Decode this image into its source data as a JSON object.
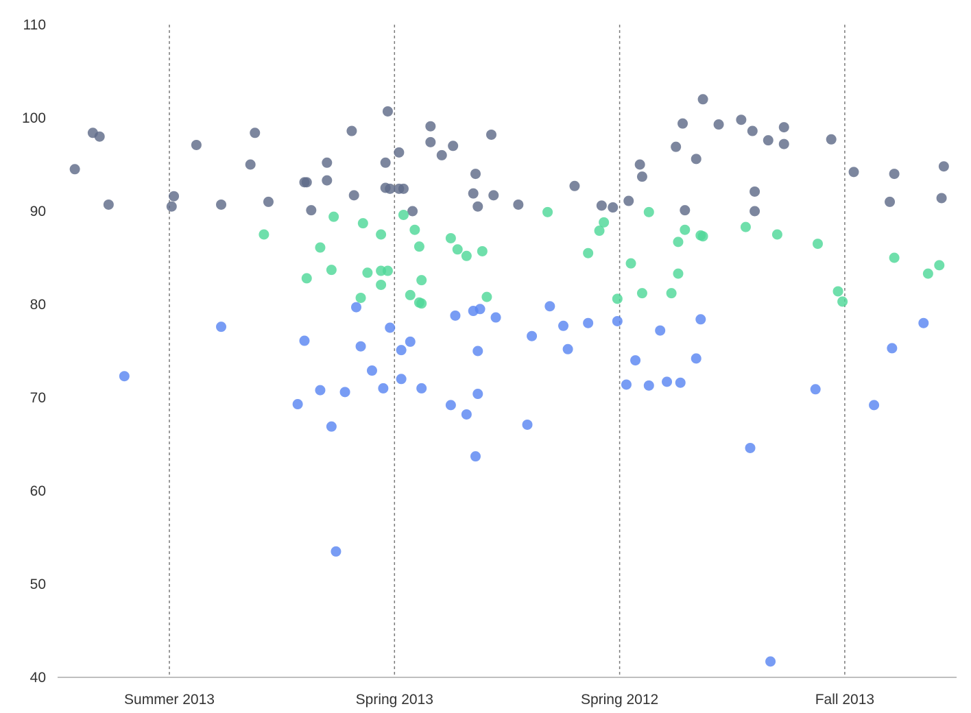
{
  "chart_data": {
    "type": "scatter",
    "title": "",
    "xlabel": "",
    "ylabel": "",
    "ylim": [
      40,
      110
    ],
    "yticks": [
      40,
      50,
      60,
      70,
      80,
      90,
      100,
      110
    ],
    "categories": [
      "Summer 2013",
      "Spring 2013",
      "Spring 2012",
      "Fall 2013"
    ],
    "grid": "vertical dashed lines at category centers",
    "legend": "none",
    "colors": [
      "#5f6b89",
      "#5a86f2",
      "#4fd899"
    ],
    "series": [
      {
        "color": "#5f6b89",
        "points": [
          {
            "category": "Summer 2013",
            "offset": -0.42,
            "y": 94.5
          },
          {
            "category": "Summer 2013",
            "offset": -0.34,
            "y": 98.4
          },
          {
            "category": "Summer 2013",
            "offset": -0.31,
            "y": 98.0
          },
          {
            "category": "Summer 2013",
            "offset": -0.27,
            "y": 90.7
          },
          {
            "category": "Summer 2013",
            "offset": 0.01,
            "y": 90.5
          },
          {
            "category": "Summer 2013",
            "offset": 0.02,
            "y": 91.6
          },
          {
            "category": "Summer 2013",
            "offset": 0.12,
            "y": 97.1
          },
          {
            "category": "Summer 2013",
            "offset": 0.23,
            "y": 90.7
          },
          {
            "category": "Summer 2013",
            "offset": 0.36,
            "y": 95.0
          },
          {
            "category": "Summer 2013",
            "offset": 0.38,
            "y": 98.4
          },
          {
            "category": "Summer 2013",
            "offset": 0.44,
            "y": 91.0
          },
          {
            "category": "Spring 2013",
            "offset": -0.4,
            "y": 93.1
          },
          {
            "category": "Spring 2013",
            "offset": -0.39,
            "y": 93.1
          },
          {
            "category": "Spring 2013",
            "offset": -0.37,
            "y": 90.1
          },
          {
            "category": "Spring 2013",
            "offset": -0.3,
            "y": 95.2
          },
          {
            "category": "Spring 2013",
            "offset": -0.3,
            "y": 93.3
          },
          {
            "category": "Spring 2013",
            "offset": -0.19,
            "y": 98.6
          },
          {
            "category": "Spring 2013",
            "offset": -0.18,
            "y": 91.7
          },
          {
            "category": "Spring 2013",
            "offset": -0.04,
            "y": 95.2
          },
          {
            "category": "Spring 2013",
            "offset": -0.04,
            "y": 92.5
          },
          {
            "category": "Spring 2013",
            "offset": -0.03,
            "y": 100.7
          },
          {
            "category": "Spring 2013",
            "offset": -0.02,
            "y": 92.4
          },
          {
            "category": "Spring 2013",
            "offset": 0.02,
            "y": 96.3
          },
          {
            "category": "Spring 2013",
            "offset": 0.02,
            "y": 92.4
          },
          {
            "category": "Spring 2013",
            "offset": 0.04,
            "y": 92.4
          },
          {
            "category": "Spring 2013",
            "offset": 0.08,
            "y": 90.0
          },
          {
            "category": "Spring 2013",
            "offset": 0.16,
            "y": 99.1
          },
          {
            "category": "Spring 2013",
            "offset": 0.16,
            "y": 97.4
          },
          {
            "category": "Spring 2013",
            "offset": 0.21,
            "y": 96.0
          },
          {
            "category": "Spring 2013",
            "offset": 0.26,
            "y": 97.0
          },
          {
            "category": "Spring 2013",
            "offset": 0.35,
            "y": 91.9
          },
          {
            "category": "Spring 2013",
            "offset": 0.36,
            "y": 94.0
          },
          {
            "category": "Spring 2013",
            "offset": 0.37,
            "y": 90.5
          },
          {
            "category": "Spring 2013",
            "offset": 0.43,
            "y": 98.2
          },
          {
            "category": "Spring 2013",
            "offset": 0.44,
            "y": 91.7
          },
          {
            "category": "Spring 2012",
            "offset": -0.45,
            "y": 90.7
          },
          {
            "category": "Spring 2012",
            "offset": -0.2,
            "y": 92.7
          },
          {
            "category": "Spring 2012",
            "offset": -0.08,
            "y": 90.6
          },
          {
            "category": "Spring 2012",
            "offset": -0.03,
            "y": 90.4
          },
          {
            "category": "Spring 2012",
            "offset": 0.04,
            "y": 91.1
          },
          {
            "category": "Spring 2012",
            "offset": 0.09,
            "y": 95.0
          },
          {
            "category": "Spring 2012",
            "offset": 0.1,
            "y": 93.7
          },
          {
            "category": "Spring 2012",
            "offset": 0.25,
            "y": 96.9
          },
          {
            "category": "Spring 2012",
            "offset": 0.28,
            "y": 99.4
          },
          {
            "category": "Spring 2012",
            "offset": 0.29,
            "y": 90.1
          },
          {
            "category": "Spring 2012",
            "offset": 0.34,
            "y": 95.6
          },
          {
            "category": "Spring 2012",
            "offset": 0.37,
            "y": 102.0
          },
          {
            "category": "Spring 2012",
            "offset": 0.44,
            "y": 99.3
          },
          {
            "category": "Fall 2013",
            "offset": -0.46,
            "y": 99.8
          },
          {
            "category": "Fall 2013",
            "offset": -0.41,
            "y": 98.6
          },
          {
            "category": "Fall 2013",
            "offset": -0.4,
            "y": 92.1
          },
          {
            "category": "Fall 2013",
            "offset": -0.4,
            "y": 90.0
          },
          {
            "category": "Fall 2013",
            "offset": -0.34,
            "y": 97.6
          },
          {
            "category": "Fall 2013",
            "offset": -0.27,
            "y": 99.0
          },
          {
            "category": "Fall 2013",
            "offset": -0.27,
            "y": 97.2
          },
          {
            "category": "Fall 2013",
            "offset": -0.06,
            "y": 97.7
          },
          {
            "category": "Fall 2013",
            "offset": 0.04,
            "y": 94.2
          },
          {
            "category": "Fall 2013",
            "offset": 0.2,
            "y": 91.0
          },
          {
            "category": "Fall 2013",
            "offset": 0.22,
            "y": 94.0
          },
          {
            "category": "Fall 2013",
            "offset": 0.43,
            "y": 91.4
          },
          {
            "category": "Fall 2013",
            "offset": 0.44,
            "y": 94.8
          }
        ]
      },
      {
        "color": "#5a86f2",
        "points": [
          {
            "category": "Summer 2013",
            "offset": -0.2,
            "y": 72.3
          },
          {
            "category": "Summer 2013",
            "offset": 0.23,
            "y": 77.6
          },
          {
            "category": "Spring 2013",
            "offset": -0.43,
            "y": 69.3
          },
          {
            "category": "Spring 2013",
            "offset": -0.4,
            "y": 76.1
          },
          {
            "category": "Spring 2013",
            "offset": -0.33,
            "y": 70.8
          },
          {
            "category": "Spring 2013",
            "offset": -0.28,
            "y": 66.9
          },
          {
            "category": "Spring 2013",
            "offset": -0.26,
            "y": 53.5
          },
          {
            "category": "Spring 2013",
            "offset": -0.22,
            "y": 70.6
          },
          {
            "category": "Spring 2013",
            "offset": -0.17,
            "y": 79.7
          },
          {
            "category": "Spring 2013",
            "offset": -0.15,
            "y": 75.5
          },
          {
            "category": "Spring 2013",
            "offset": -0.1,
            "y": 72.9
          },
          {
            "category": "Spring 2013",
            "offset": -0.05,
            "y": 71.0
          },
          {
            "category": "Spring 2013",
            "offset": -0.02,
            "y": 77.5
          },
          {
            "category": "Spring 2013",
            "offset": 0.03,
            "y": 75.1
          },
          {
            "category": "Spring 2013",
            "offset": 0.03,
            "y": 72.0
          },
          {
            "category": "Spring 2013",
            "offset": 0.07,
            "y": 76.0
          },
          {
            "category": "Spring 2013",
            "offset": 0.12,
            "y": 71.0
          },
          {
            "category": "Spring 2013",
            "offset": 0.25,
            "y": 69.2
          },
          {
            "category": "Spring 2013",
            "offset": 0.27,
            "y": 78.8
          },
          {
            "category": "Spring 2013",
            "offset": 0.32,
            "y": 68.2
          },
          {
            "category": "Spring 2013",
            "offset": 0.35,
            "y": 79.3
          },
          {
            "category": "Spring 2013",
            "offset": 0.36,
            "y": 63.7
          },
          {
            "category": "Spring 2013",
            "offset": 0.37,
            "y": 75.0
          },
          {
            "category": "Spring 2013",
            "offset": 0.37,
            "y": 70.4
          },
          {
            "category": "Spring 2013",
            "offset": 0.38,
            "y": 79.5
          },
          {
            "category": "Spring 2013",
            "offset": 0.45,
            "y": 78.6
          },
          {
            "category": "Spring 2012",
            "offset": -0.41,
            "y": 67.1
          },
          {
            "category": "Spring 2012",
            "offset": -0.39,
            "y": 76.6
          },
          {
            "category": "Spring 2012",
            "offset": -0.31,
            "y": 79.8
          },
          {
            "category": "Spring 2012",
            "offset": -0.25,
            "y": 77.7
          },
          {
            "category": "Spring 2012",
            "offset": -0.23,
            "y": 75.2
          },
          {
            "category": "Spring 2012",
            "offset": -0.14,
            "y": 78.0
          },
          {
            "category": "Spring 2012",
            "offset": -0.01,
            "y": 78.2
          },
          {
            "category": "Spring 2012",
            "offset": 0.03,
            "y": 71.4
          },
          {
            "category": "Spring 2012",
            "offset": 0.07,
            "y": 74.0
          },
          {
            "category": "Spring 2012",
            "offset": 0.13,
            "y": 71.3
          },
          {
            "category": "Spring 2012",
            "offset": 0.18,
            "y": 77.2
          },
          {
            "category": "Spring 2012",
            "offset": 0.21,
            "y": 71.7
          },
          {
            "category": "Spring 2012",
            "offset": 0.27,
            "y": 71.6
          },
          {
            "category": "Spring 2012",
            "offset": 0.34,
            "y": 74.2
          },
          {
            "category": "Spring 2012",
            "offset": 0.36,
            "y": 78.4
          },
          {
            "category": "Fall 2013",
            "offset": -0.42,
            "y": 64.6
          },
          {
            "category": "Fall 2013",
            "offset": -0.33,
            "y": 41.7
          },
          {
            "category": "Fall 2013",
            "offset": -0.13,
            "y": 70.9
          },
          {
            "category": "Fall 2013",
            "offset": 0.13,
            "y": 69.2
          },
          {
            "category": "Fall 2013",
            "offset": 0.21,
            "y": 75.3
          },
          {
            "category": "Fall 2013",
            "offset": 0.35,
            "y": 78.0
          }
        ]
      },
      {
        "color": "#4fd899",
        "points": [
          {
            "category": "Summer 2013",
            "offset": 0.42,
            "y": 87.5
          },
          {
            "category": "Spring 2013",
            "offset": -0.39,
            "y": 82.8
          },
          {
            "category": "Spring 2013",
            "offset": -0.33,
            "y": 86.1
          },
          {
            "category": "Spring 2013",
            "offset": -0.28,
            "y": 83.7
          },
          {
            "category": "Spring 2013",
            "offset": -0.27,
            "y": 89.4
          },
          {
            "category": "Spring 2013",
            "offset": -0.15,
            "y": 80.7
          },
          {
            "category": "Spring 2013",
            "offset": -0.14,
            "y": 88.7
          },
          {
            "category": "Spring 2013",
            "offset": -0.12,
            "y": 83.4
          },
          {
            "category": "Spring 2013",
            "offset": -0.06,
            "y": 82.1
          },
          {
            "category": "Spring 2013",
            "offset": -0.06,
            "y": 83.6
          },
          {
            "category": "Spring 2013",
            "offset": -0.06,
            "y": 87.5
          },
          {
            "category": "Spring 2013",
            "offset": -0.03,
            "y": 83.6
          },
          {
            "category": "Spring 2013",
            "offset": 0.04,
            "y": 89.6
          },
          {
            "category": "Spring 2013",
            "offset": 0.07,
            "y": 81.0
          },
          {
            "category": "Spring 2013",
            "offset": 0.09,
            "y": 88.0
          },
          {
            "category": "Spring 2013",
            "offset": 0.11,
            "y": 86.2
          },
          {
            "category": "Spring 2013",
            "offset": 0.11,
            "y": 80.2
          },
          {
            "category": "Spring 2013",
            "offset": 0.12,
            "y": 82.6
          },
          {
            "category": "Spring 2013",
            "offset": 0.12,
            "y": 80.1
          },
          {
            "category": "Spring 2013",
            "offset": 0.25,
            "y": 87.1
          },
          {
            "category": "Spring 2013",
            "offset": 0.28,
            "y": 85.9
          },
          {
            "category": "Spring 2013",
            "offset": 0.32,
            "y": 85.2
          },
          {
            "category": "Spring 2013",
            "offset": 0.39,
            "y": 85.7
          },
          {
            "category": "Spring 2013",
            "offset": 0.41,
            "y": 80.8
          },
          {
            "category": "Spring 2012",
            "offset": -0.32,
            "y": 89.9
          },
          {
            "category": "Spring 2012",
            "offset": -0.14,
            "y": 85.5
          },
          {
            "category": "Spring 2012",
            "offset": -0.09,
            "y": 87.9
          },
          {
            "category": "Spring 2012",
            "offset": -0.07,
            "y": 88.8
          },
          {
            "category": "Spring 2012",
            "offset": -0.01,
            "y": 80.6
          },
          {
            "category": "Spring 2012",
            "offset": 0.05,
            "y": 84.4
          },
          {
            "category": "Spring 2012",
            "offset": 0.1,
            "y": 81.2
          },
          {
            "category": "Spring 2012",
            "offset": 0.13,
            "y": 89.9
          },
          {
            "category": "Spring 2012",
            "offset": 0.23,
            "y": 81.2
          },
          {
            "category": "Spring 2012",
            "offset": 0.26,
            "y": 86.7
          },
          {
            "category": "Spring 2012",
            "offset": 0.26,
            "y": 83.3
          },
          {
            "category": "Spring 2012",
            "offset": 0.29,
            "y": 88.0
          },
          {
            "category": "Spring 2012",
            "offset": 0.36,
            "y": 87.4
          },
          {
            "category": "Spring 2012",
            "offset": 0.37,
            "y": 87.3
          },
          {
            "category": "Fall 2013",
            "offset": -0.44,
            "y": 88.3
          },
          {
            "category": "Fall 2013",
            "offset": -0.3,
            "y": 87.5
          },
          {
            "category": "Fall 2013",
            "offset": -0.12,
            "y": 86.5
          },
          {
            "category": "Fall 2013",
            "offset": -0.03,
            "y": 81.4
          },
          {
            "category": "Fall 2013",
            "offset": -0.01,
            "y": 80.3
          },
          {
            "category": "Fall 2013",
            "offset": 0.22,
            "y": 85.0
          },
          {
            "category": "Fall 2013",
            "offset": 0.37,
            "y": 83.3
          },
          {
            "category": "Fall 2013",
            "offset": 0.42,
            "y": 84.2
          }
        ]
      }
    ]
  }
}
